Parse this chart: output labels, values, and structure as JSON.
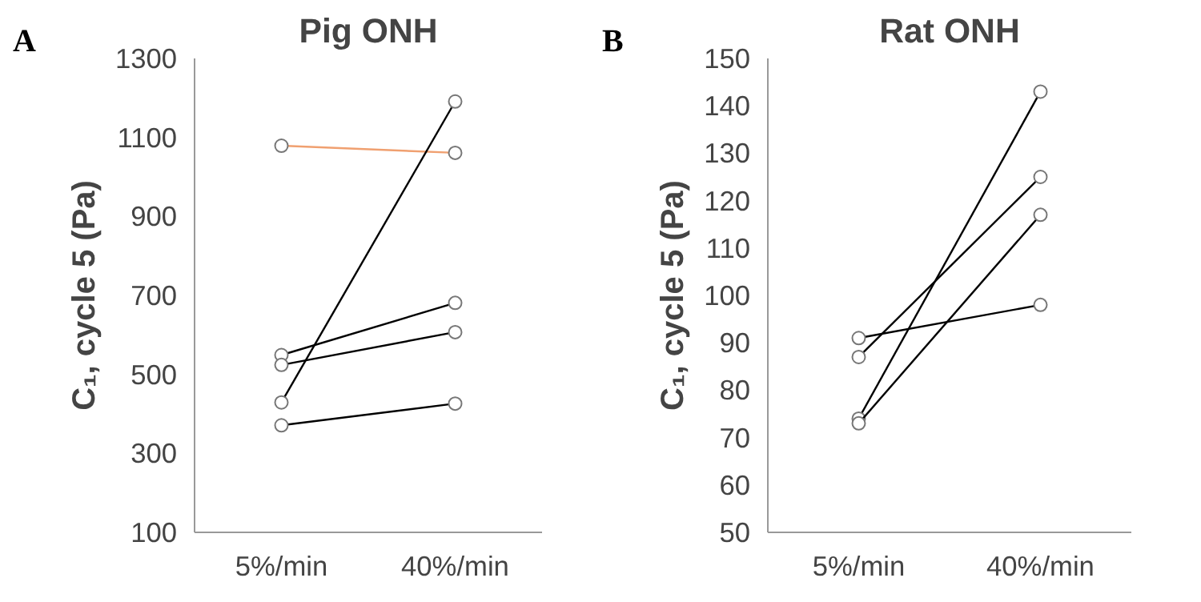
{
  "chart_data": [
    {
      "type": "line",
      "title": "Pig ONH",
      "ylabel": "C₁, cycle 5 (Pa)",
      "annotations": [
        "A"
      ],
      "categories": [
        "5%/min",
        "40%/min"
      ],
      "ylim": [
        100,
        1300
      ],
      "yticks": [
        100,
        300,
        500,
        700,
        900,
        1100,
        1300
      ],
      "marker": "circle",
      "series": [
        {
          "color": "#f0a070",
          "values": [
            1079,
            1061
          ]
        },
        {
          "color": "#000000",
          "values": [
            429,
            1191
          ]
        },
        {
          "color": "#000000",
          "values": [
            549,
            681
          ]
        },
        {
          "color": "#000000",
          "values": [
            524,
            607
          ]
        },
        {
          "color": "#000000",
          "values": [
            371,
            426
          ]
        }
      ]
    },
    {
      "type": "line",
      "title": "Rat ONH",
      "ylabel": "C₁, cycle 5 (Pa)",
      "annotations": [
        "B"
      ],
      "categories": [
        "5%/min",
        "40%/min"
      ],
      "ylim": [
        50,
        150
      ],
      "yticks": [
        50,
        60,
        70,
        80,
        90,
        100,
        110,
        120,
        130,
        140,
        150
      ],
      "marker": "circle",
      "series": [
        {
          "color": "#000000",
          "values": [
            91,
            98
          ]
        },
        {
          "color": "#000000",
          "values": [
            87,
            125
          ]
        },
        {
          "color": "#000000",
          "values": [
            74,
            143
          ]
        },
        {
          "color": "#000000",
          "values": [
            73,
            117
          ]
        }
      ]
    }
  ]
}
